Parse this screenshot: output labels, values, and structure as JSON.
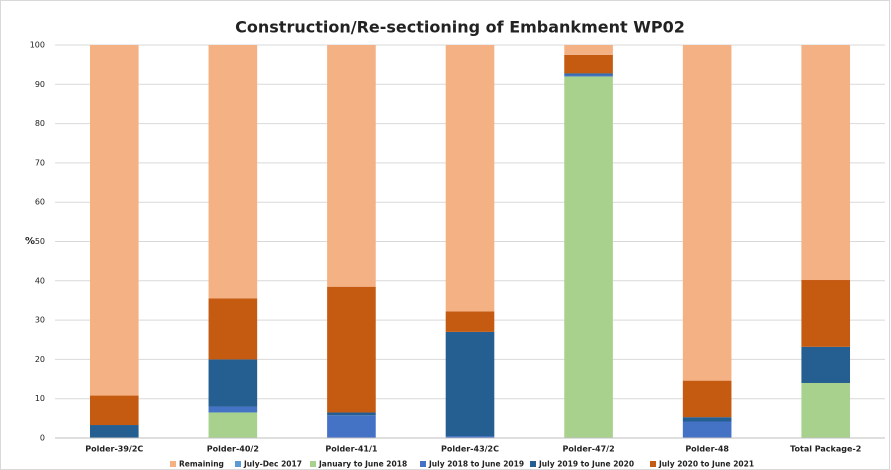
{
  "chart_data": {
    "type": "stacked-bar",
    "title": "Construction/Re-sectioning of Embankment WP02",
    "y_label": "%",
    "categories": [
      "Polder-39/2C",
      "Polder-40/2",
      "Polder-41/1",
      "Polder-43/2C",
      "Polder-47/2",
      "Polder-48",
      "Total Package-2"
    ],
    "series": [
      {
        "name": "Remaining",
        "color": "#f4b183",
        "values": [
          89.2,
          64.5,
          61.5,
          67.8,
          2.5,
          85.4,
          59.8
        ]
      },
      {
        "name": "July-Dec 2017",
        "color": "#5b9bd5",
        "values": [
          0,
          0,
          0,
          0,
          0,
          0,
          0
        ]
      },
      {
        "name": "January  to June 2018",
        "color": "#a9d18e",
        "values": [
          0,
          6.5,
          0,
          0,
          92,
          0,
          14
        ]
      },
      {
        "name": "July 2018 to June 2019",
        "color": "#4472c4",
        "values": [
          0,
          1.5,
          5.8,
          0.5,
          0.5,
          4.2,
          0
        ]
      },
      {
        "name": "July 2019 to June 2020",
        "color": "#255e91",
        "values": [
          3.3,
          12,
          0.7,
          26.5,
          0.3,
          1.1,
          9.2
        ]
      },
      {
        "name": "July 2020 to June 2021",
        "color": "#c55a11",
        "values": [
          7.5,
          15.5,
          32,
          5.2,
          4.7,
          9.3,
          17
        ]
      }
    ],
    "ylim": [
      0,
      100
    ],
    "yticks": [
      0,
      10,
      20,
      30,
      40,
      50,
      60,
      70,
      80,
      90,
      100
    ],
    "grid": true
  }
}
